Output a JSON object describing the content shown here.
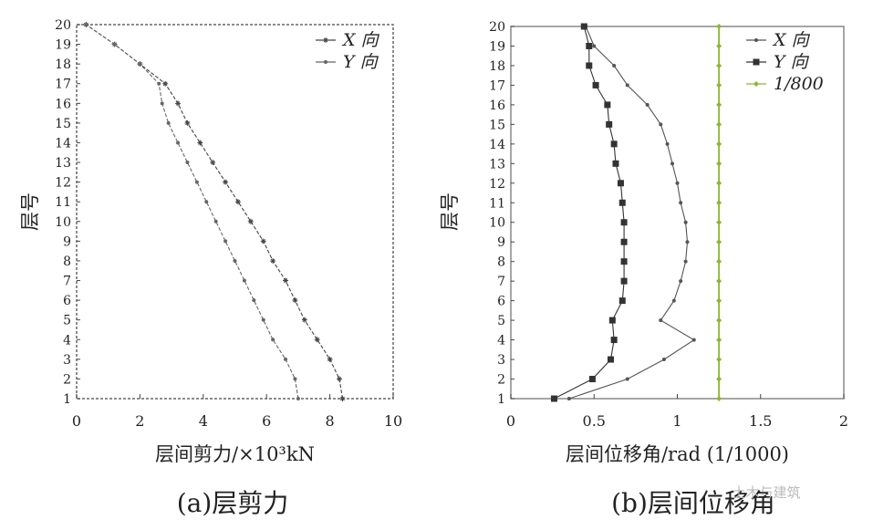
{
  "watermark": "土木与建筑",
  "chart_data": [
    {
      "type": "line",
      "caption": "(a)层剪力",
      "xlabel": "层间剪力/×10³kN",
      "ylabel": "层号",
      "xlim": [
        0,
        10
      ],
      "ylim": [
        1,
        20
      ],
      "x_ticks": [
        0,
        2,
        4,
        6,
        8,
        10
      ],
      "y_ticks": [
        1,
        2,
        3,
        4,
        5,
        6,
        7,
        8,
        9,
        10,
        11,
        12,
        13,
        14,
        15,
        16,
        17,
        18,
        19,
        20
      ],
      "legend_position": "top-right",
      "grid": false,
      "series": [
        {
          "name": "X 向",
          "color": "#444444",
          "points": [
            [
              8.4,
              1
            ],
            [
              8.3,
              2
            ],
            [
              8.0,
              3
            ],
            [
              7.6,
              4
            ],
            [
              7.2,
              5
            ],
            [
              6.9,
              6
            ],
            [
              6.6,
              7
            ],
            [
              6.2,
              8
            ],
            [
              5.9,
              9
            ],
            [
              5.5,
              10
            ],
            [
              5.1,
              11
            ],
            [
              4.7,
              12
            ],
            [
              4.3,
              13
            ],
            [
              3.9,
              14
            ],
            [
              3.5,
              15
            ],
            [
              3.2,
              16
            ],
            [
              2.8,
              17
            ],
            [
              2.0,
              18
            ],
            [
              1.2,
              19
            ],
            [
              0.3,
              20
            ]
          ]
        },
        {
          "name": "Y 向",
          "color": "#666666",
          "points": [
            [
              7.0,
              1
            ],
            [
              6.9,
              2
            ],
            [
              6.6,
              3
            ],
            [
              6.2,
              4
            ],
            [
              5.9,
              5
            ],
            [
              5.6,
              6
            ],
            [
              5.3,
              7
            ],
            [
              5.0,
              8
            ],
            [
              4.7,
              9
            ],
            [
              4.4,
              10
            ],
            [
              4.1,
              11
            ],
            [
              3.8,
              12
            ],
            [
              3.5,
              13
            ],
            [
              3.2,
              14
            ],
            [
              2.9,
              15
            ],
            [
              2.7,
              16
            ],
            [
              2.6,
              17
            ],
            [
              2.0,
              18
            ],
            [
              1.2,
              19
            ],
            [
              0.3,
              20
            ]
          ]
        }
      ]
    },
    {
      "type": "line",
      "caption": "(b)层间位移角",
      "xlabel": "层间位移角/rad (1/1000)",
      "ylabel": "层号",
      "xlim": [
        0,
        2
      ],
      "ylim": [
        1,
        20
      ],
      "x_ticks": [
        0,
        0.5,
        1,
        1.5,
        2
      ],
      "y_ticks": [
        1,
        2,
        3,
        4,
        5,
        6,
        7,
        8,
        9,
        10,
        11,
        12,
        13,
        14,
        15,
        16,
        17,
        18,
        19,
        20
      ],
      "legend_position": "top-right",
      "grid": false,
      "series": [
        {
          "name": "X 向",
          "color": "#555555",
          "points": [
            [
              0.35,
              1
            ],
            [
              0.7,
              2
            ],
            [
              0.92,
              3
            ],
            [
              1.1,
              4
            ],
            [
              0.9,
              5
            ],
            [
              0.98,
              6
            ],
            [
              1.02,
              7
            ],
            [
              1.05,
              8
            ],
            [
              1.06,
              9
            ],
            [
              1.05,
              10
            ],
            [
              1.02,
              11
            ],
            [
              1.0,
              12
            ],
            [
              0.97,
              13
            ],
            [
              0.94,
              14
            ],
            [
              0.9,
              15
            ],
            [
              0.82,
              16
            ],
            [
              0.7,
              17
            ],
            [
              0.62,
              18
            ],
            [
              0.5,
              19
            ],
            [
              0.45,
              20
            ]
          ]
        },
        {
          "name": "Y 向",
          "color": "#333333",
          "points": [
            [
              0.26,
              1
            ],
            [
              0.49,
              2
            ],
            [
              0.6,
              3
            ],
            [
              0.62,
              4
            ],
            [
              0.61,
              5
            ],
            [
              0.67,
              6
            ],
            [
              0.68,
              7
            ],
            [
              0.68,
              8
            ],
            [
              0.68,
              9
            ],
            [
              0.68,
              10
            ],
            [
              0.67,
              11
            ],
            [
              0.66,
              12
            ],
            [
              0.63,
              13
            ],
            [
              0.62,
              14
            ],
            [
              0.59,
              15
            ],
            [
              0.58,
              16
            ],
            [
              0.51,
              17
            ],
            [
              0.47,
              18
            ],
            [
              0.47,
              19
            ],
            [
              0.44,
              20
            ]
          ]
        },
        {
          "name": "1/800",
          "color": "#8ab830",
          "points": [
            [
              1.25,
              1
            ],
            [
              1.25,
              2
            ],
            [
              1.25,
              3
            ],
            [
              1.25,
              4
            ],
            [
              1.25,
              5
            ],
            [
              1.25,
              6
            ],
            [
              1.25,
              7
            ],
            [
              1.25,
              8
            ],
            [
              1.25,
              9
            ],
            [
              1.25,
              10
            ],
            [
              1.25,
              11
            ],
            [
              1.25,
              12
            ],
            [
              1.25,
              13
            ],
            [
              1.25,
              14
            ],
            [
              1.25,
              15
            ],
            [
              1.25,
              16
            ],
            [
              1.25,
              17
            ],
            [
              1.25,
              18
            ],
            [
              1.25,
              19
            ],
            [
              1.25,
              20
            ]
          ]
        }
      ]
    }
  ]
}
